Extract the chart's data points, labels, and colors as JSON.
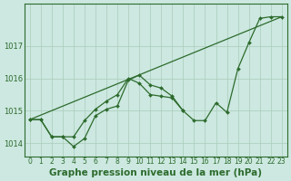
{
  "background_color": "#cce8e0",
  "line_color": "#2d6b2d",
  "marker_color": "#2d6b2d",
  "grid_color": "#aaccbb",
  "xlabel": "Graphe pression niveau de la mer (hPa)",
  "xlabel_fontsize": 7.5,
  "xlim": [
    -0.5,
    23.5
  ],
  "ylim": [
    1013.6,
    1018.3
  ],
  "yticks": [
    1014,
    1015,
    1016,
    1017
  ],
  "xticks": [
    0,
    1,
    2,
    3,
    4,
    5,
    6,
    7,
    8,
    9,
    10,
    11,
    12,
    13,
    14,
    15,
    16,
    17,
    18,
    19,
    20,
    21,
    22,
    23
  ],
  "line1_x": [
    0,
    1,
    2,
    3,
    4,
    5,
    6,
    7,
    8,
    9,
    10,
    11,
    12,
    13,
    14
  ],
  "line1_y": [
    1014.73,
    1014.73,
    1014.2,
    1014.2,
    1013.9,
    1014.15,
    1014.85,
    1015.05,
    1015.15,
    1015.95,
    1016.1,
    1015.8,
    1015.7,
    1015.45,
    1015.0
  ],
  "line2_x": [
    0,
    1,
    2,
    3,
    4,
    5,
    6,
    7,
    8,
    9,
    10,
    11,
    12,
    13,
    14,
    15,
    16,
    17,
    18,
    19,
    20,
    21,
    22,
    23
  ],
  "line2_y": [
    1014.73,
    1014.73,
    1014.2,
    1014.2,
    1014.2,
    1014.7,
    1015.05,
    1015.3,
    1015.5,
    1016.0,
    1015.85,
    1015.5,
    1015.45,
    1015.4,
    1015.0,
    1014.7,
    1014.7,
    1015.25,
    1014.95,
    1016.3,
    1017.1,
    1017.85,
    1017.9,
    1017.9
  ],
  "line3_x": [
    0,
    23
  ],
  "line3_y": [
    1014.73,
    1017.9
  ]
}
